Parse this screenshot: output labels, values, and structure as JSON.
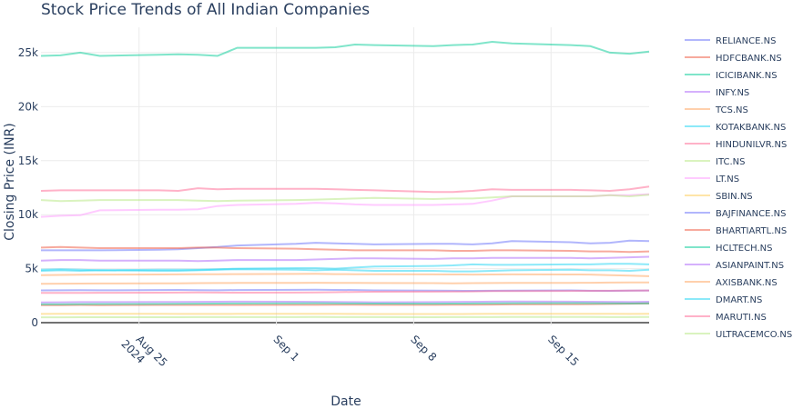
{
  "chart_data": {
    "type": "line",
    "title": "Stock Price Trends of All Indian Companies",
    "xlabel": "Date",
    "ylabel": "Closing Price (INR)",
    "x": [
      "2024-08-20",
      "2024-08-21",
      "2024-08-22",
      "2024-08-23",
      "2024-08-26",
      "2024-08-27",
      "2024-08-28",
      "2024-08-29",
      "2024-08-30",
      "2024-09-02",
      "2024-09-03",
      "2024-09-04",
      "2024-09-05",
      "2024-09-06",
      "2024-09-09",
      "2024-09-10",
      "2024-09-11",
      "2024-09-12",
      "2024-09-13",
      "2024-09-16",
      "2024-09-17",
      "2024-09-18",
      "2024-09-19",
      "2024-09-20"
    ],
    "xlim": [
      "2024-08-20",
      "2024-09-20"
    ],
    "xticks": [
      {
        "value": "2024-08-25",
        "label": [
          "Aug 25",
          "2024"
        ]
      },
      {
        "value": "2024-09-01",
        "label": [
          "Sep 1"
        ]
      },
      {
        "value": "2024-09-08",
        "label": [
          "Sep 8"
        ]
      },
      {
        "value": "2024-09-15",
        "label": [
          "Sep 15"
        ]
      }
    ],
    "ylim": [
      -250,
      27350
    ],
    "yticks": [
      0,
      {
        "value": 5000,
        "label": "5k"
      },
      {
        "value": 10000,
        "label": "10k"
      },
      {
        "value": 15000,
        "label": "15k"
      },
      {
        "value": 20000,
        "label": "20k"
      },
      {
        "value": 25000,
        "label": "25k"
      }
    ],
    "grid": true,
    "legend": "right",
    "series": [
      {
        "name": "RELIANCE.NS",
        "color": "#636efa",
        "values": [
          2990,
          3000,
          3010,
          3000,
          3020,
          3030,
          3010,
          3000,
          3020,
          3040,
          3050,
          3030,
          3020,
          2990,
          2970,
          2960,
          2950,
          2960,
          2970,
          2990,
          2960,
          2950,
          2970,
          2980
        ]
      },
      {
        "name": "HDFCBANK.NS",
        "color": "#EF553B",
        "values": [
          1620,
          1630,
          1640,
          1630,
          1640,
          1640,
          1640,
          1640,
          1640,
          1650,
          1650,
          1660,
          1660,
          1650,
          1650,
          1660,
          1660,
          1680,
          1690,
          1700,
          1720,
          1740,
          1760,
          1780
        ]
      },
      {
        "name": "ICICIBANK.NS",
        "color": "#00cc96",
        "values": [
          24700,
          24750,
          25000,
          24700,
          24800,
          24850,
          24800,
          24700,
          25450,
          25450,
          25450,
          25500,
          25750,
          25700,
          25600,
          25700,
          25750,
          26000,
          25850,
          25700,
          25600,
          25000,
          24900,
          25100
        ]
      },
      {
        "name": "INFY.NS",
        "color": "#ab63fa",
        "values": [
          1880,
          1890,
          1900,
          1900,
          1910,
          1920,
          1930,
          1940,
          1950,
          1940,
          1930,
          1920,
          1900,
          1890,
          1900,
          1920,
          1930,
          1950,
          1960,
          1950,
          1940,
          1930,
          1920,
          1940
        ]
      },
      {
        "name": "TCS.NS",
        "color": "#FFA15A",
        "values": [
          4400,
          4420,
          4440,
          4450,
          4460,
          4470,
          4480,
          4490,
          4500,
          4510,
          4520,
          4500,
          4490,
          4480,
          4470,
          4460,
          4450,
          4460,
          4470,
          4460,
          4450,
          4400,
          4350,
          4300
        ]
      },
      {
        "name": "KOTAKBANK.NS",
        "color": "#19d3f3",
        "values": [
          4800,
          4850,
          4800,
          4850,
          4800,
          4800,
          4850,
          4900,
          4950,
          4900,
          4850,
          4900,
          4850,
          4800,
          4800,
          4750,
          4750,
          4800,
          4850,
          4900,
          4850,
          4850,
          4800,
          4900
        ]
      },
      {
        "name": "HINDUNILVR.NS",
        "color": "#FF6692",
        "values": [
          2750,
          2760,
          2760,
          2770,
          2780,
          2790,
          2800,
          2790,
          2780,
          2790,
          2800,
          2820,
          2850,
          2860,
          2870,
          2880,
          2900,
          2920,
          2930,
          2940,
          2950,
          2960,
          2970,
          2980
        ]
      },
      {
        "name": "ITC.NS",
        "color": "#B6E880",
        "values": [
          500,
          502,
          505,
          505,
          508,
          510,
          512,
          515,
          516,
          518,
          520,
          518,
          515,
          512,
          510,
          512,
          515,
          518,
          520,
          522,
          520,
          518,
          515,
          520
        ]
      },
      {
        "name": "LT.NS",
        "color": "#FF97FF",
        "values": [
          9800,
          9900,
          9950,
          10400,
          10450,
          10450,
          10500,
          10800,
          10900,
          11000,
          11100,
          11050,
          10950,
          10900,
          10900,
          10950,
          11000,
          11300,
          11700,
          11700,
          11700,
          11800,
          11800,
          11900
        ]
      },
      {
        "name": "SBIN.NS",
        "color": "#FECB52",
        "values": [
          810,
          815,
          820,
          820,
          815,
          810,
          810,
          812,
          815,
          818,
          820,
          815,
          810,
          805,
          800,
          805,
          810,
          815,
          820,
          822,
          818,
          815,
          812,
          815
        ]
      },
      {
        "name": "BAJFINANCE.NS",
        "color": "#636efa",
        "values": [
          6700,
          6700,
          6700,
          6700,
          6750,
          6800,
          6900,
          7000,
          7150,
          7300,
          7400,
          7350,
          7300,
          7250,
          7300,
          7300,
          7250,
          7350,
          7550,
          7450,
          7350,
          7400,
          7600,
          7550
        ]
      },
      {
        "name": "BHARTIARTL.NS",
        "color": "#EF553B",
        "values": [
          6950,
          7000,
          6950,
          6900,
          6900,
          6900,
          6950,
          6950,
          6900,
          6850,
          6800,
          6750,
          6700,
          6700,
          6700,
          6650,
          6650,
          6700,
          6700,
          6650,
          6600,
          6600,
          6550,
          6600
        ]
      },
      {
        "name": "HCLTECH.NS",
        "color": "#00cc96",
        "values": [
          1700,
          1710,
          1720,
          1730,
          1740,
          1750,
          1760,
          1770,
          1780,
          1790,
          1800,
          1790,
          1780,
          1770,
          1760,
          1770,
          1780,
          1790,
          1800,
          1810,
          1800,
          1790,
          1780,
          1790
        ]
      },
      {
        "name": "ASIANPAINT.NS",
        "color": "#ab63fa",
        "values": [
          5750,
          5800,
          5800,
          5750,
          5750,
          5750,
          5700,
          5750,
          5800,
          5800,
          5850,
          5900,
          5950,
          5950,
          5900,
          5950,
          5950,
          6000,
          6000,
          6000,
          5950,
          6000,
          6050,
          6100
        ]
      },
      {
        "name": "AXISBANK.NS",
        "color": "#FFA15A",
        "values": [
          3600,
          3610,
          3620,
          3630,
          3640,
          3650,
          3660,
          3670,
          3680,
          3690,
          3700,
          3690,
          3680,
          3670,
          3660,
          3650,
          3660,
          3670,
          3680,
          3690,
          3700,
          3710,
          3720,
          3730
        ]
      },
      {
        "name": "DMART.NS",
        "color": "#19d3f3",
        "values": [
          4900,
          4950,
          4900,
          4850,
          4900,
          4900,
          4900,
          4950,
          5000,
          5050,
          5050,
          5000,
          5100,
          5200,
          5250,
          5300,
          5400,
          5350,
          5350,
          5400,
          5400,
          5450,
          5450,
          5400
        ]
      },
      {
        "name": "MARUTI.NS",
        "color": "#FF6692",
        "values": [
          12200,
          12250,
          12250,
          12250,
          12250,
          12200,
          12450,
          12350,
          12400,
          12400,
          12400,
          12350,
          12300,
          12250,
          12100,
          12100,
          12200,
          12350,
          12300,
          12300,
          12250,
          12200,
          12350,
          12600
        ]
      },
      {
        "name": "ULTRACEMCO.NS",
        "color": "#B6E880",
        "values": [
          11350,
          11250,
          11300,
          11350,
          11350,
          11350,
          11300,
          11250,
          11300,
          11350,
          11400,
          11450,
          11500,
          11550,
          11450,
          11500,
          11500,
          11600,
          11700,
          11700,
          11700,
          11800,
          11700,
          11850
        ]
      }
    ]
  }
}
